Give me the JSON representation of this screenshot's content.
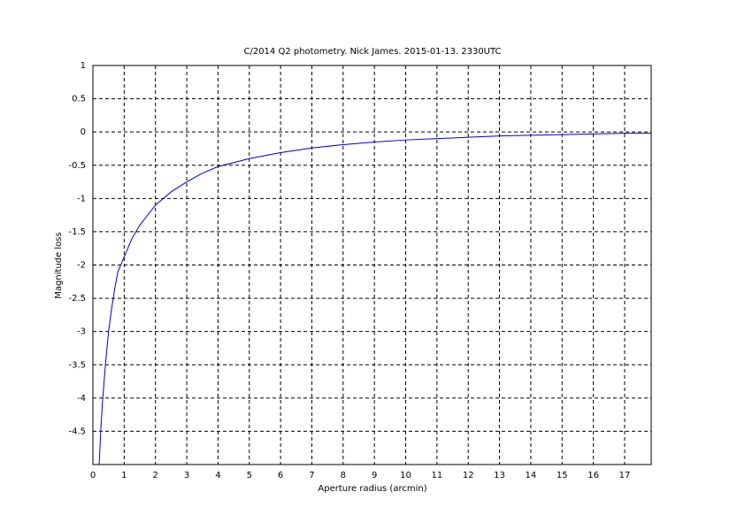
{
  "chart_data": {
    "type": "line",
    "title": "C/2014 Q2 photometry. Nick James. 2015-01-13. 2330UTC",
    "x_label": "Aperture radius (arcmin)",
    "y_label": "Magnitude loss",
    "x": [
      0.2,
      0.25,
      0.3,
      0.4,
      0.5,
      0.6,
      0.7,
      0.8,
      1,
      1.25,
      1.5,
      1.75,
      2,
      2.5,
      3,
      3.5,
      4,
      5,
      6,
      7,
      8,
      9,
      10,
      11,
      12,
      13,
      14,
      15,
      16,
      17,
      17.85
    ],
    "series": [
      {
        "color": "#0000cc",
        "values": [
          -5,
          -4.5,
          -4.1,
          -3.5,
          -3.0,
          -2.65,
          -2.35,
          -2.1,
          -1.88,
          -1.6,
          -1.4,
          -1.25,
          -1.1,
          -0.9,
          -0.75,
          -0.62,
          -0.52,
          -0.4,
          -0.31,
          -0.24,
          -0.19,
          -0.15,
          -0.12,
          -0.1,
          -0.08,
          -0.06,
          -0.05,
          -0.04,
          -0.03,
          -0.02,
          -0.02
        ]
      }
    ],
    "xlim": [
      0,
      17.85
    ],
    "ylim": [
      -5,
      1
    ],
    "xticks": [
      0,
      1,
      2,
      3,
      4,
      5,
      6,
      7,
      8,
      9,
      10,
      11,
      12,
      13,
      14,
      15,
      16,
      17
    ],
    "yticks": [
      1,
      0.5,
      0,
      -0.5,
      -1,
      -1.5,
      -2,
      -2.5,
      -3,
      -3.5,
      -4,
      -4.5
    ],
    "grid": true
  }
}
